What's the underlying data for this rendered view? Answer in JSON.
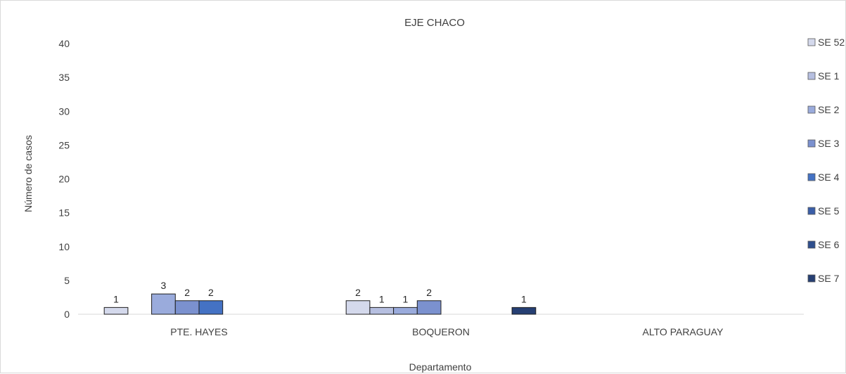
{
  "chart_data": {
    "type": "bar",
    "title": "EJE CHACO",
    "xlabel": "Departamento",
    "ylabel": "Número de casos",
    "categories": [
      "PTE. HAYES",
      "BOQUERON",
      "ALTO PARAGUAY"
    ],
    "ylim": [
      0,
      40
    ],
    "yticks": [
      "0",
      "5",
      "10",
      "15",
      "20",
      "25",
      "30",
      "35",
      "40"
    ],
    "grid": false,
    "legend_position": "right",
    "series": [
      {
        "name": "SE 52",
        "color": "#d4d9ec",
        "values": [
          1,
          2,
          0
        ]
      },
      {
        "name": "SE 1",
        "color": "#b6bfe0",
        "values": [
          0,
          1,
          0
        ]
      },
      {
        "name": "SE 2",
        "color": "#9aabdc",
        "values": [
          3,
          1,
          0
        ]
      },
      {
        "name": "SE 3",
        "color": "#7b91cf",
        "values": [
          2,
          2,
          0
        ]
      },
      {
        "name": "SE 4",
        "color": "#4472c4",
        "values": [
          2,
          0,
          0
        ]
      },
      {
        "name": "SE 5",
        "color": "#3a5ea8",
        "values": [
          0,
          0,
          0
        ]
      },
      {
        "name": "SE 6",
        "color": "#2f4f8e",
        "values": [
          0,
          0,
          0
        ]
      },
      {
        "name": "SE 7",
        "color": "#263f73",
        "values": [
          0,
          1,
          0
        ]
      }
    ]
  }
}
